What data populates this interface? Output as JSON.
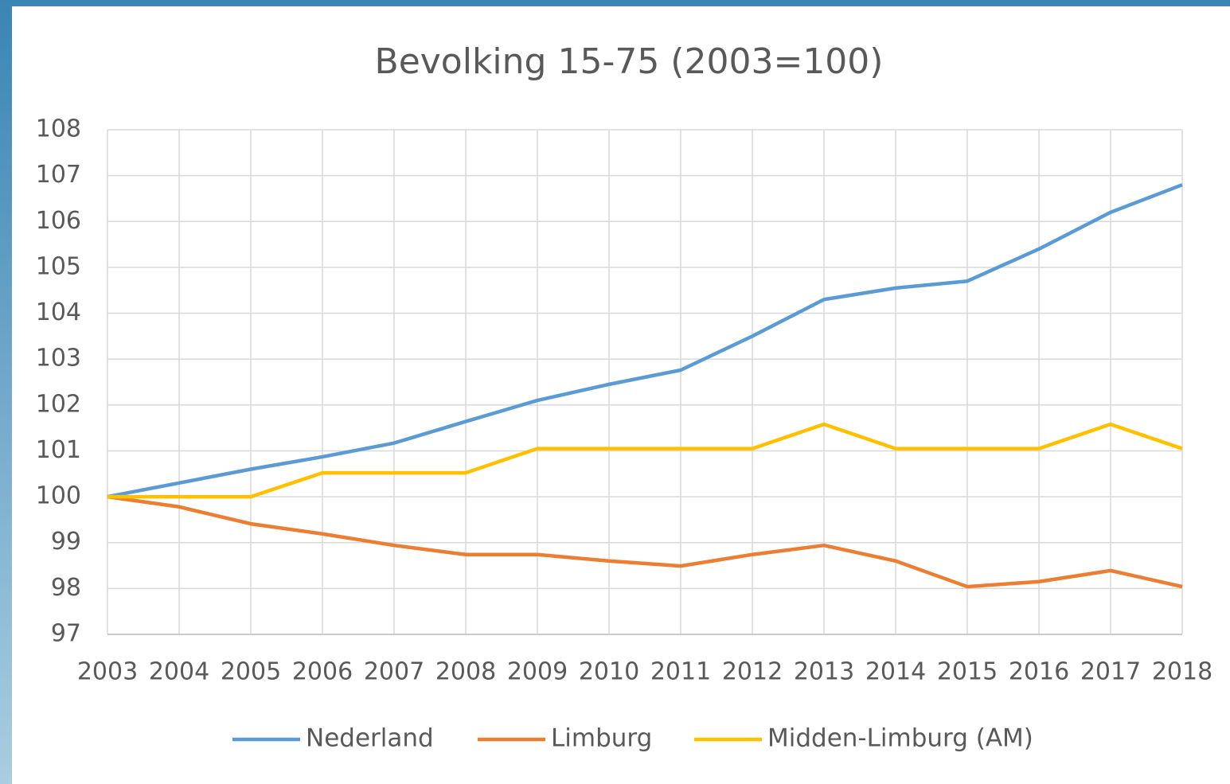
{
  "chart_data": {
    "type": "line",
    "title": "Bevolking 15-75 (2003=100)",
    "x": [
      "2003",
      "2004",
      "2005",
      "2006",
      "2007",
      "2008",
      "2009",
      "2010",
      "2011",
      "2012",
      "2013",
      "2014",
      "2015",
      "2016",
      "2017",
      "2018"
    ],
    "series": [
      {
        "name": "Nederland",
        "color": "#5b9bd5",
        "values": [
          100,
          100.3,
          100.6,
          100.87,
          101.17,
          101.64,
          102.1,
          102.45,
          102.76,
          103.5,
          104.3,
          104.55,
          104.7,
          105.4,
          106.2,
          106.8
        ]
      },
      {
        "name": "Limburg",
        "color": "#ed7d31",
        "values": [
          100,
          99.78,
          99.41,
          99.19,
          98.94,
          98.74,
          98.74,
          98.6,
          98.49,
          98.74,
          98.94,
          98.6,
          98.04,
          98.15,
          98.39,
          98.04
        ]
      },
      {
        "name": "Midden-Limburg (AM)",
        "color": "#ffc000",
        "values": [
          100,
          100,
          100,
          100.52,
          100.52,
          100.52,
          101.05,
          101.05,
          101.05,
          101.05,
          101.58,
          101.05,
          101.05,
          101.05,
          101.58,
          101.05
        ]
      }
    ],
    "ylim": [
      97,
      108
    ],
    "yticks": [
      97,
      98,
      99,
      100,
      101,
      102,
      103,
      104,
      105,
      106,
      107,
      108
    ],
    "grid": true,
    "legend": "bottom"
  }
}
